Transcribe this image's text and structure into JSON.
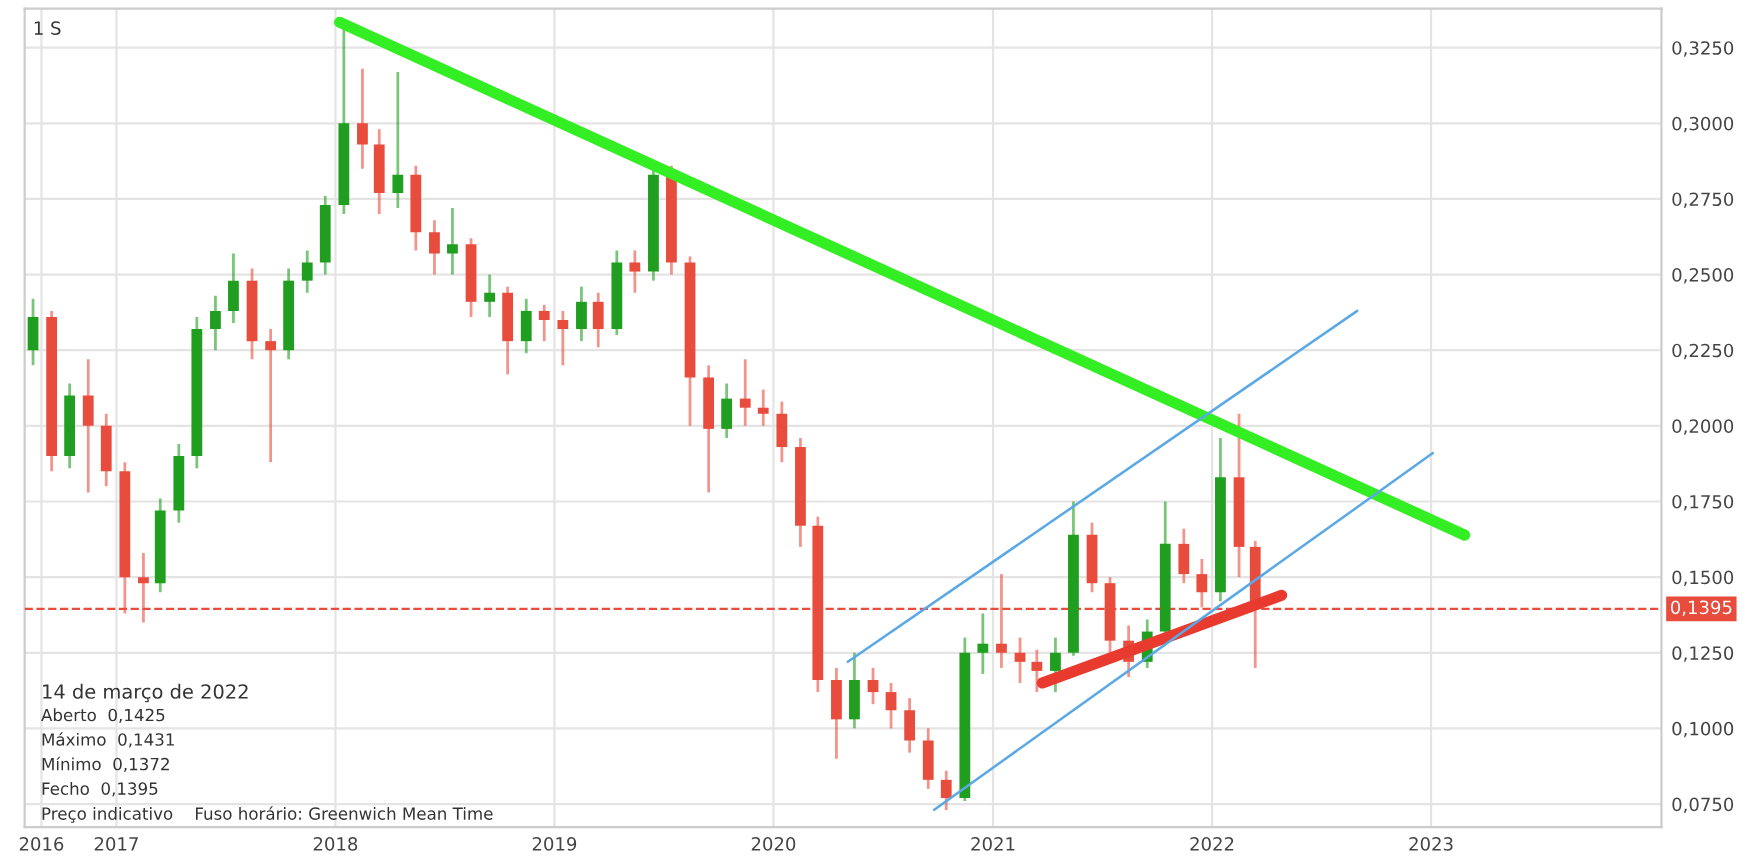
{
  "chart_data": {
    "type": "candlestick",
    "x": [
      "2016-08-15",
      "2016-09-15",
      "2016-10-15",
      "2016-11-15",
      "2016-12-15",
      "2017-01-15",
      "2017-02-15",
      "2017-03-15",
      "2017-04-15",
      "2017-05-15",
      "2017-06-15",
      "2017-07-15",
      "2017-08-15",
      "2017-09-15",
      "2017-10-15",
      "2017-11-15",
      "2017-12-15",
      "2018-01-15",
      "2018-02-15",
      "2018-03-15",
      "2018-04-15",
      "2018-05-15",
      "2018-06-15",
      "2018-07-15",
      "2018-08-15",
      "2018-09-15",
      "2018-10-15",
      "2018-11-15",
      "2018-12-15",
      "2019-01-15",
      "2019-02-15",
      "2019-03-15",
      "2019-04-15",
      "2019-05-15",
      "2019-06-15",
      "2019-07-15",
      "2019-08-15",
      "2019-09-15",
      "2019-10-15",
      "2019-11-15",
      "2019-12-15",
      "2020-01-15",
      "2020-02-15",
      "2020-03-15",
      "2020-04-15",
      "2020-05-15",
      "2020-06-15",
      "2020-07-15",
      "2020-08-15",
      "2020-09-15",
      "2020-10-15",
      "2020-11-15",
      "2020-12-15",
      "2021-01-15",
      "2021-02-15",
      "2021-03-15",
      "2021-04-15",
      "2021-05-15",
      "2021-06-15",
      "2021-07-15",
      "2021-08-15",
      "2021-09-15",
      "2021-10-15",
      "2021-11-15",
      "2021-12-15",
      "2022-01-15",
      "2022-02-15",
      "2022-03-14"
    ],
    "ohlc": [
      [
        0.225,
        0.242,
        0.22,
        0.236
      ],
      [
        0.236,
        0.238,
        0.185,
        0.19
      ],
      [
        0.19,
        0.214,
        0.186,
        0.21
      ],
      [
        0.21,
        0.222,
        0.178,
        0.2
      ],
      [
        0.2,
        0.204,
        0.18,
        0.185
      ],
      [
        0.185,
        0.188,
        0.138,
        0.15
      ],
      [
        0.15,
        0.158,
        0.135,
        0.148
      ],
      [
        0.148,
        0.176,
        0.145,
        0.172
      ],
      [
        0.172,
        0.194,
        0.168,
        0.19
      ],
      [
        0.19,
        0.236,
        0.186,
        0.232
      ],
      [
        0.232,
        0.243,
        0.225,
        0.238
      ],
      [
        0.238,
        0.257,
        0.234,
        0.248
      ],
      [
        0.248,
        0.252,
        0.222,
        0.228
      ],
      [
        0.228,
        0.232,
        0.188,
        0.225
      ],
      [
        0.225,
        0.252,
        0.222,
        0.248
      ],
      [
        0.248,
        0.258,
        0.244,
        0.254
      ],
      [
        0.254,
        0.276,
        0.25,
        0.273
      ],
      [
        0.273,
        0.332,
        0.27,
        0.3
      ],
      [
        0.3,
        0.318,
        0.285,
        0.293
      ],
      [
        0.293,
        0.298,
        0.27,
        0.277
      ],
      [
        0.277,
        0.317,
        0.272,
        0.283
      ],
      [
        0.283,
        0.286,
        0.258,
        0.264
      ],
      [
        0.264,
        0.268,
        0.25,
        0.257
      ],
      [
        0.257,
        0.272,
        0.25,
        0.26
      ],
      [
        0.26,
        0.262,
        0.236,
        0.241
      ],
      [
        0.241,
        0.25,
        0.236,
        0.244
      ],
      [
        0.244,
        0.246,
        0.217,
        0.228
      ],
      [
        0.228,
        0.242,
        0.224,
        0.238
      ],
      [
        0.238,
        0.24,
        0.228,
        0.235
      ],
      [
        0.235,
        0.238,
        0.22,
        0.232
      ],
      [
        0.232,
        0.246,
        0.228,
        0.241
      ],
      [
        0.241,
        0.244,
        0.226,
        0.232
      ],
      [
        0.232,
        0.258,
        0.23,
        0.254
      ],
      [
        0.254,
        0.258,
        0.244,
        0.251
      ],
      [
        0.251,
        0.288,
        0.248,
        0.283
      ],
      [
        0.283,
        0.286,
        0.25,
        0.254
      ],
      [
        0.254,
        0.256,
        0.2,
        0.216
      ],
      [
        0.216,
        0.22,
        0.178,
        0.199
      ],
      [
        0.199,
        0.214,
        0.196,
        0.209
      ],
      [
        0.209,
        0.222,
        0.2,
        0.206
      ],
      [
        0.206,
        0.212,
        0.2,
        0.204
      ],
      [
        0.204,
        0.208,
        0.188,
        0.193
      ],
      [
        0.193,
        0.196,
        0.16,
        0.167
      ],
      [
        0.167,
        0.17,
        0.112,
        0.116
      ],
      [
        0.116,
        0.12,
        0.09,
        0.103
      ],
      [
        0.103,
        0.125,
        0.1,
        0.116
      ],
      [
        0.116,
        0.12,
        0.108,
        0.112
      ],
      [
        0.112,
        0.115,
        0.1,
        0.106
      ],
      [
        0.106,
        0.11,
        0.092,
        0.096
      ],
      [
        0.096,
        0.1,
        0.08,
        0.083
      ],
      [
        0.083,
        0.086,
        0.073,
        0.077
      ],
      [
        0.077,
        0.13,
        0.076,
        0.125
      ],
      [
        0.125,
        0.138,
        0.118,
        0.128
      ],
      [
        0.128,
        0.151,
        0.12,
        0.125
      ],
      [
        0.125,
        0.13,
        0.115,
        0.122
      ],
      [
        0.122,
        0.126,
        0.112,
        0.119
      ],
      [
        0.119,
        0.13,
        0.112,
        0.125
      ],
      [
        0.125,
        0.175,
        0.124,
        0.164
      ],
      [
        0.164,
        0.168,
        0.145,
        0.148
      ],
      [
        0.148,
        0.15,
        0.125,
        0.129
      ],
      [
        0.129,
        0.134,
        0.117,
        0.122
      ],
      [
        0.122,
        0.136,
        0.12,
        0.132
      ],
      [
        0.132,
        0.175,
        0.13,
        0.161
      ],
      [
        0.161,
        0.166,
        0.148,
        0.151
      ],
      [
        0.151,
        0.156,
        0.14,
        0.145
      ],
      [
        0.145,
        0.196,
        0.142,
        0.183
      ],
      [
        0.183,
        0.204,
        0.15,
        0.16
      ],
      [
        0.16,
        0.162,
        0.12,
        0.1395
      ]
    ],
    "series": [
      {
        "type": "line",
        "x": [
          "2018-01-08",
          "2023-02-26"
        ],
        "values": [
          0.3334,
          0.1639
        ],
        "color": "#33ee22"
      },
      {
        "type": "line",
        "x": [
          "2021-03-24",
          "2022-04-27"
        ],
        "values": [
          0.115,
          0.144
        ],
        "color": "#e83a2e"
      },
      {
        "type": "line",
        "x": [
          "2020-09-25",
          "2023-01-04"
        ],
        "values": [
          0.0731,
          0.191
        ],
        "color": "#5aa9e6"
      },
      {
        "type": "line",
        "x": [
          "2020-05-04",
          "2022-08-31"
        ],
        "values": [
          0.122,
          0.238
        ],
        "color": "#5aa9e6"
      }
    ],
    "xlim": [
      "2016-08-01",
      "2024-01-20"
    ],
    "xticks": [
      {
        "value": "2016-08-29",
        "label": "2016"
      },
      {
        "value": "2017-01-01",
        "label": "2017"
      },
      {
        "value": "2018-01-01",
        "label": "2018"
      },
      {
        "value": "2019-01-01",
        "label": "2019"
      },
      {
        "value": "2020-01-01",
        "label": "2020"
      },
      {
        "value": "2021-01-01",
        "label": "2021"
      },
      {
        "value": "2022-01-01",
        "label": "2022"
      },
      {
        "value": "2023-01-01",
        "label": "2023"
      }
    ],
    "ylim": [
      0.0674,
      0.3379
    ],
    "yticks": [
      {
        "value": 0.075,
        "label": "0,0750"
      },
      {
        "value": 0.1,
        "label": "0,1000"
      },
      {
        "value": 0.125,
        "label": "0,1250"
      },
      {
        "value": 0.15,
        "label": "0,1500"
      },
      {
        "value": 0.175,
        "label": "0,1750"
      },
      {
        "value": 0.2,
        "label": "0,2000"
      },
      {
        "value": 0.225,
        "label": "0,2250"
      },
      {
        "value": 0.25,
        "label": "0,2500"
      },
      {
        "value": 0.275,
        "label": "0,2750"
      },
      {
        "value": 0.3,
        "label": "0,3000"
      },
      {
        "value": 0.325,
        "label": "0,3250"
      }
    ],
    "ref_lines": [
      {
        "axis": "y",
        "value": 0.1395,
        "label": "0,1395",
        "color": "#e84c3d",
        "line_style": "dashed"
      }
    ],
    "grid": true,
    "annotations": [
      "1 S",
      "14 de março de 2022",
      "Aberto  0,1425",
      "Máximo  0,1431",
      "Mínimo  0,1372",
      "Fecho  0,1395",
      "Preço indicativo    Fuso horário: Greenwich Mean Time"
    ]
  }
}
